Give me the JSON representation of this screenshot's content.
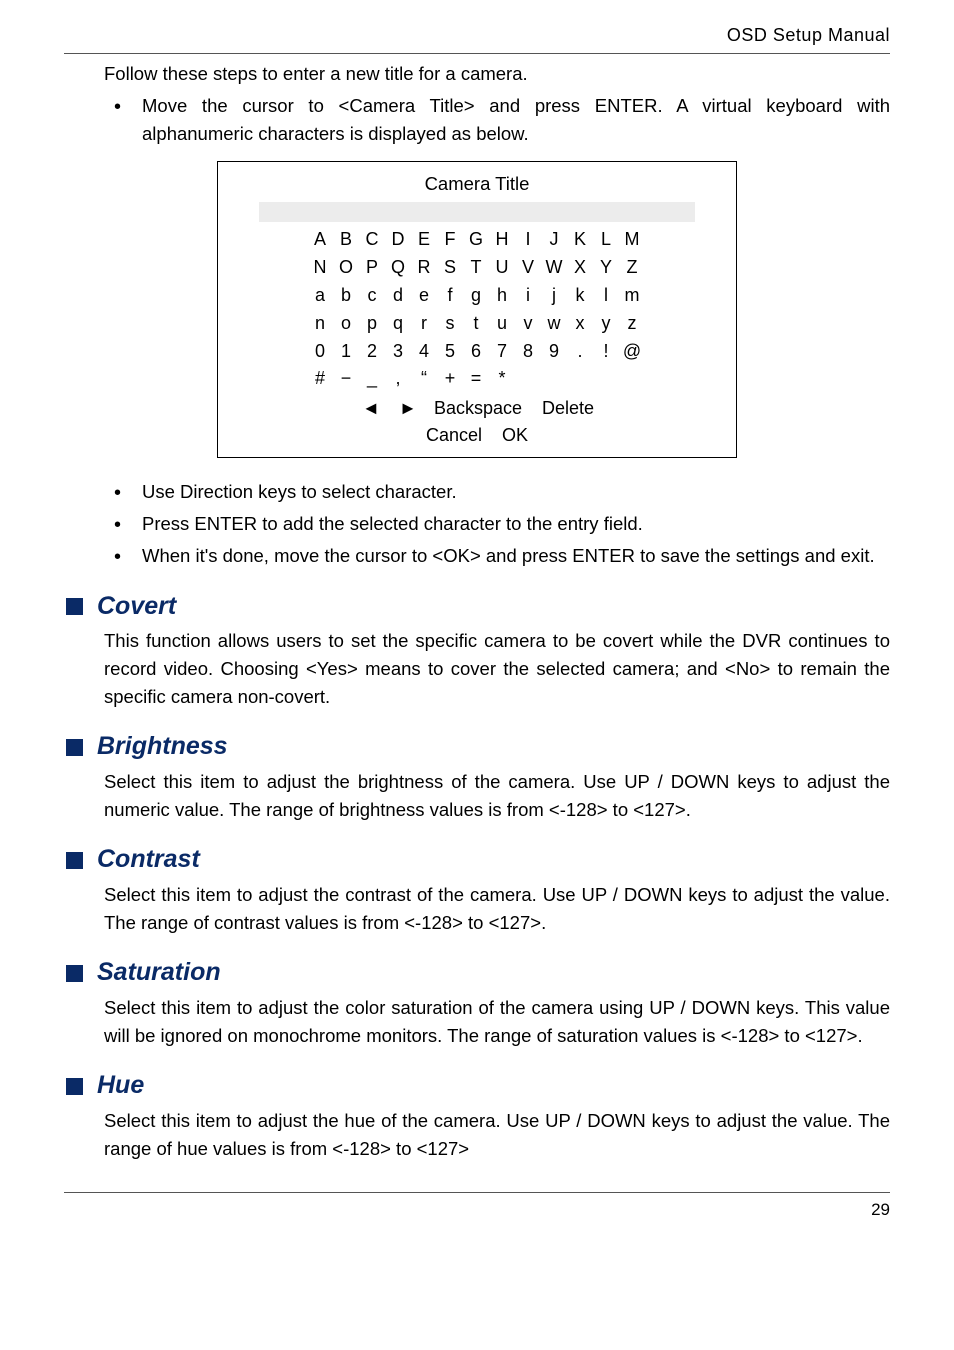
{
  "header": {
    "title": "OSD Setup Manual"
  },
  "intro": {
    "line": "Follow these steps to enter a new title for a camera.",
    "bullet": "Move the cursor to <Camera Title> and press ENTER. A virtual keyboard with alphanumeric characters is displayed as below."
  },
  "keyboard": {
    "title": "Camera Title",
    "rows": [
      [
        "A",
        "B",
        "C",
        "D",
        "E",
        "F",
        "G",
        "H",
        "I",
        "J",
        "K",
        "L",
        "M"
      ],
      [
        "N",
        "O",
        "P",
        "Q",
        "R",
        "S",
        "T",
        "U",
        "V",
        "W",
        "X",
        "Y",
        "Z"
      ],
      [
        "a",
        "b",
        "c",
        "d",
        "e",
        "f",
        "g",
        "h",
        "i",
        "j",
        "k",
        "l",
        "m"
      ],
      [
        "n",
        "o",
        "p",
        "q",
        "r",
        "s",
        "t",
        "u",
        "v",
        "w",
        "x",
        "y",
        "z"
      ],
      [
        "0",
        "1",
        "2",
        "3",
        "4",
        "5",
        "6",
        "7",
        "8",
        "9",
        ".",
        "!",
        "@"
      ],
      [
        "#",
        "−",
        "_",
        ",",
        "“",
        "+",
        "=",
        "*",
        "",
        "",
        "",
        "",
        ""
      ]
    ],
    "controls_line1_left": "◄",
    "controls_line1_right": "►",
    "controls_line1_backspace": "Backspace",
    "controls_line1_delete": "Delete",
    "controls_line2_cancel": "Cancel",
    "controls_line2_ok": "OK"
  },
  "post_bullets": [
    "Use Direction keys to select character.",
    "Press ENTER to add the selected character to the entry field.",
    "When it's done, move the cursor to <OK> and press ENTER to save the settings and exit."
  ],
  "sections": {
    "covert": {
      "title": "Covert",
      "body": "This function allows users to set the specific camera to be covert while the DVR continues to record video. Choosing <Yes> means to cover the selected camera; and <No> to remain the specific camera non-covert."
    },
    "brightness": {
      "title": "Brightness",
      "body": "Select this item to adjust the brightness of the camera. Use UP / DOWN keys to adjust the numeric value. The range of brightness values is from <-128> to <127>."
    },
    "contrast": {
      "title": "Contrast",
      "body": "Select this item to adjust the contrast of the camera. Use UP / DOWN keys to adjust the value. The range of contrast values is from <-128> to <127>."
    },
    "saturation": {
      "title": "Saturation",
      "body": "Select this item to adjust the color saturation of the camera using UP / DOWN keys. This value will be ignored on monochrome monitors. The range of saturation values is <-128> to <127>."
    },
    "hue": {
      "title": "Hue",
      "body": "Select this item to adjust the hue of the camera. Use UP / DOWN keys to adjust the value. The range of hue values is from <-128> to <127>"
    }
  },
  "footer": {
    "page": "29"
  },
  "colors": {
    "accent": "#0a2a66",
    "entry_bg": "#ececec"
  }
}
